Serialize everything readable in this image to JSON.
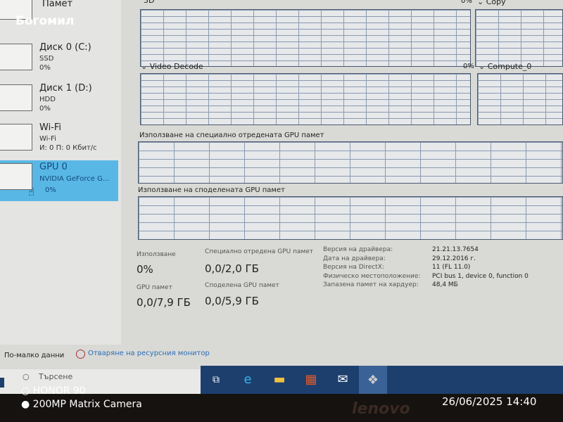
{
  "overlay_name": "Богомил",
  "sidebar": {
    "items": [
      {
        "title": "Памет",
        "sub1": "",
        "sub2": ""
      },
      {
        "title": "Диск 0 (C:)",
        "sub1": "SSD",
        "sub2": "0%"
      },
      {
        "title": "Диск 1 (D:)",
        "sub1": "HDD",
        "sub2": "0%"
      },
      {
        "title": "Wi-Fi",
        "sub1": "Wi-Fi",
        "sub2": "И: 0 П: 0 Кбит/с"
      },
      {
        "title": "GPU 0",
        "sub1": "NVIDIA GeForce G...",
        "sub2": "0%"
      }
    ]
  },
  "graphs": {
    "g3d": {
      "label": "3D"
    },
    "copy": {
      "pct": "0%",
      "label": "Copy"
    },
    "video_decode": {
      "label": "Video Decode"
    },
    "compute": {
      "pct": "0%",
      "label": "Compute_0"
    },
    "dedicated_label": "Използване на специално отредената GPU памет",
    "shared_label": "Използване на споделената GPU памет"
  },
  "stats": {
    "usage_label": "Използване",
    "usage": "0%",
    "dedicated_label": "Специално отредена GPU памет",
    "dedicated": "0,0/2,0 ГБ",
    "gpu_mem_label": "GPU памет",
    "gpu_mem": "0,0/7,9 ГБ",
    "shared_label": "Споделена GPU памет",
    "shared": "0,0/5,9 ГБ"
  },
  "details": [
    {
      "k": "Версия на драйвера:",
      "v": "21.21.13.7654"
    },
    {
      "k": "Дата на драйвера:",
      "v": "29.12.2016 г."
    },
    {
      "k": "Версия на DirectX:",
      "v": "11 (FL 11.0)"
    },
    {
      "k": "Физическо местоположение:",
      "v": "PCI bus 1, device 0, function 0"
    },
    {
      "k": "Запазена памет на хардуер:",
      "v": "48,4 МБ"
    }
  ],
  "footer": {
    "less": "По-малко данни",
    "monitor": "Отваряне на ресурсния монитор"
  },
  "search": {
    "placeholder": "Търсене"
  },
  "camera": {
    "model": "HONOR 90",
    "camera": "200MP Matrix Camera",
    "datetime": "26/06/2025 14:40",
    "brand": "lenovo"
  },
  "colors": {
    "selected": "#59b7e6",
    "taskbar": "#1c3f6e",
    "link": "#2a6fb8"
  }
}
